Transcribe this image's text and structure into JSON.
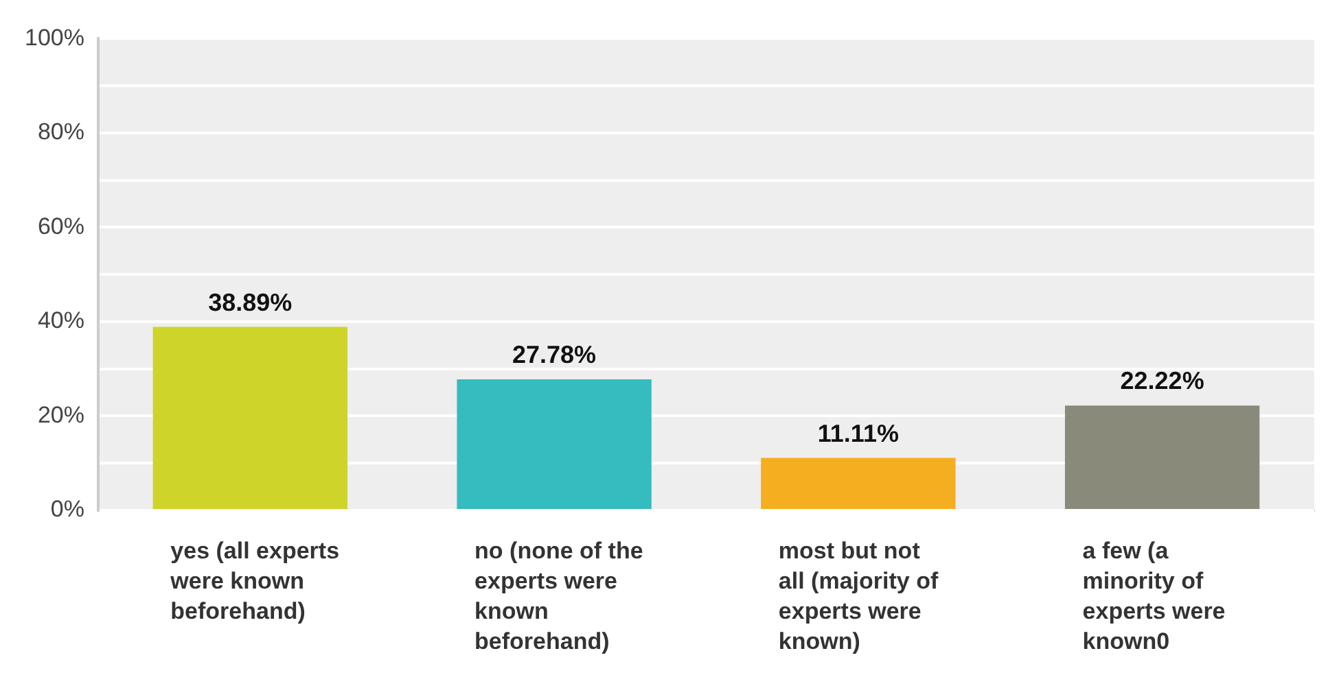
{
  "chart_data": {
    "type": "bar",
    "categories": [
      "yes (all experts were known beforehand)",
      "no (none of the experts were known beforehand)",
      "most but not all (majority of experts were known)",
      "a few (a minority of experts were known0"
    ],
    "values": [
      38.89,
      27.78,
      11.11,
      22.22
    ],
    "colors": [
      "#cfd42a",
      "#34bcbf",
      "#f5ae1f",
      "#8a8a7a"
    ],
    "value_labels": [
      "38.89%",
      "27.78%",
      "11.11%",
      "22.22%"
    ],
    "ylim": [
      0,
      100
    ],
    "yticks": [
      {
        "value": 0,
        "label": "0%"
      },
      {
        "value": 10,
        "label": null
      },
      {
        "value": 20,
        "label": "20%"
      },
      {
        "value": 30,
        "label": null
      },
      {
        "value": 40,
        "label": "40%"
      },
      {
        "value": 50,
        "label": null
      },
      {
        "value": 60,
        "label": "60%"
      },
      {
        "value": 70,
        "label": null
      },
      {
        "value": 80,
        "label": "80%"
      },
      {
        "value": 90,
        "label": null
      },
      {
        "value": 100,
        "label": "100%"
      }
    ],
    "grid": "y",
    "legend": false
  }
}
